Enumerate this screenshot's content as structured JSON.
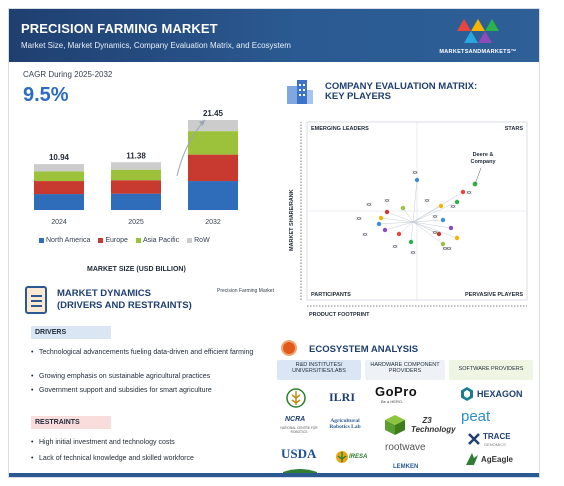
{
  "header": {
    "title": "PRECISION FARMING MARKET",
    "subtitle": "Market Size, Market Dynamics, Company Evaluation Matrix, and Ecosystem",
    "logo_text": "MARKETSANDMARKETS™"
  },
  "cagr": {
    "label": "CAGR During 2025-2032",
    "value": "9.5%"
  },
  "chart_data": {
    "type": "bar",
    "stacked": true,
    "categories": [
      "2024",
      "2025",
      "2032"
    ],
    "totals": [
      10.94,
      11.38,
      21.45
    ],
    "total_labels": [
      "10.94",
      "11.38",
      "21.45"
    ],
    "series": [
      {
        "name": "North America",
        "values": [
          3.8,
          3.9,
          6.9
        ],
        "color": "#2f6cba"
      },
      {
        "name": "Europe",
        "values": [
          3.1,
          3.2,
          6.3
        ],
        "color": "#c8392f"
      },
      {
        "name": "Asia Pacific",
        "values": [
          2.3,
          2.5,
          5.6
        ],
        "color": "#9cc13b"
      },
      {
        "name": "RoW",
        "values": [
          1.74,
          1.78,
          2.65
        ],
        "color": "#cccccc"
      }
    ],
    "xlabel": "MARKET SIZE (USD BILLION)",
    "legend": "bottom"
  },
  "market_dynamics": {
    "title_line1": "MARKET DYNAMICS",
    "title_line2": "(DRIVERS AND RESTRAINTS)",
    "side_label": "Precision Farming Market",
    "drivers_label": "DRIVERS",
    "drivers": [
      "Technological advancements fueling data-driven and efficient farming",
      "Growing emphasis on sustainable agricultural practices",
      "Government support and subsidies for smart agriculture"
    ],
    "restraints_label": "RESTRAINTS",
    "restraints": [
      "High initial investment and technology costs",
      "Lack of technical knowledge and skilled workforce"
    ]
  },
  "company_matrix": {
    "title_line1": "COMPANY EVALUATION MATRIX:",
    "title_line2": "KEY PLAYERS",
    "quadrants": {
      "top_left": "EMERGING LEADERS",
      "top_right": "STARS",
      "bottom_left": "PARTICIPANTS",
      "bottom_right": "PERVASIVE PLAYERS"
    },
    "y_axis": "MARKET SHARE/RANK",
    "x_axis": "PRODUCT FOOTPRINT",
    "highlight_company": "Deere & Company",
    "placeholder_label": "xx"
  },
  "ecosystem": {
    "title": "ECOSYSTEM ANALYSIS",
    "columns": [
      {
        "label": "R&D INSTITUTES/ UNIVERSITIES/LABS",
        "color": "#dbe6f4"
      },
      {
        "label": "HARDWARE COMPONENT PROVIDERS",
        "color": "#eef2f6"
      },
      {
        "label": "SOFTWARE PROVIDERS",
        "color": "#eef6e3"
      }
    ],
    "brands": {
      "ilri": "ILRI",
      "gopro": "GoPro",
      "gopro_sub": "Be a HERO.",
      "hexagon": "HEXAGON",
      "ncra": "NCRA",
      "ncra_sub": "NATIONAL CENTRE FOR ROBOTICS",
      "arl": "Agricultural Robotics Lab",
      "z3": "Z3 Technology",
      "peat": "peat",
      "trace": "TRACE",
      "trace_sub": "GENOMICS",
      "usda": "USDA",
      "iresa": "IRESA",
      "rootwave": "rootwave",
      "lemken": "LEMKEN",
      "ageagle": "AgEagle"
    }
  }
}
